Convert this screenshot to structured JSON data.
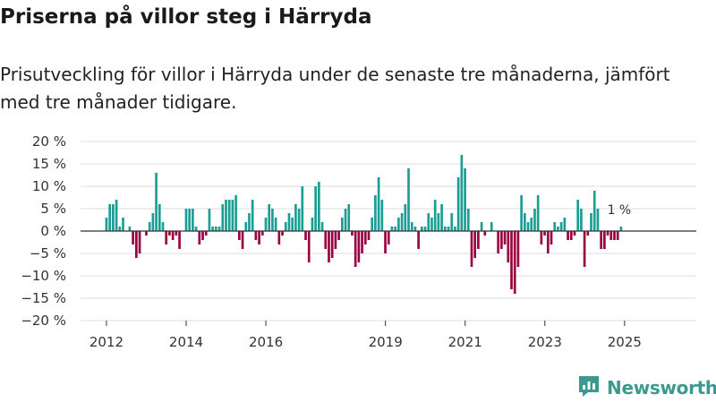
{
  "header": {
    "title": "Priserna på villor steg i Härryda",
    "subtitle": "Prisutveckling för villor i Härryda under de senaste tre månaderna, jämfört med tre månader tidigare."
  },
  "brand": {
    "name": "Newsworthy",
    "icon": "newsworthy-logo-icon"
  },
  "colors": {
    "positive": "#1a9e94",
    "negative": "#990040",
    "grid": "#dddddd",
    "brand": "#3b9a8f"
  },
  "chart_data": {
    "type": "bar",
    "title": "Priserna på villor steg i Härryda",
    "xlabel": "",
    "ylabel": "",
    "ylim": [
      -20,
      20
    ],
    "yticks": [
      20,
      15,
      10,
      5,
      0,
      -5,
      -10,
      -15,
      -20
    ],
    "ytick_labels": [
      "20 %",
      "15 %",
      "10 %",
      "5 %",
      "0 %",
      "−5 %",
      "−10 %",
      "−15 %",
      "−20 %"
    ],
    "xrange": [
      2011.35,
      2026.8
    ],
    "xticks": [
      2012,
      2014,
      2016,
      2019,
      2021,
      2023,
      2025
    ],
    "xtick_labels": [
      "2012",
      "2014",
      "2016",
      "2019",
      "2021",
      "2023",
      "2025"
    ],
    "last_value_label": "1 %",
    "start": 2012.0,
    "step": 0.0833,
    "values": [
      3,
      6,
      6,
      7,
      1,
      3,
      0,
      1,
      -3,
      -6,
      -5,
      0,
      -1,
      2,
      4,
      13,
      6,
      2,
      -3,
      -1,
      -2,
      -1,
      -4,
      0,
      5,
      5,
      5,
      1,
      -3,
      -2,
      -1,
      5,
      1,
      1,
      1,
      6,
      7,
      7,
      7,
      8,
      -2,
      -4,
      2,
      4,
      7,
      -2,
      -3,
      -1,
      3,
      6,
      5,
      3,
      -3,
      -1,
      2,
      4,
      3,
      6,
      5,
      10,
      -2,
      -7,
      3,
      10,
      11,
      2,
      -4,
      -7,
      -6,
      -4,
      -2,
      3,
      5,
      6,
      -1,
      -8,
      -7,
      -5,
      -3,
      -2,
      3,
      8,
      12,
      7,
      -5,
      -3,
      1,
      1,
      3,
      4,
      6,
      14,
      2,
      1,
      -4,
      1,
      1,
      4,
      3,
      7,
      4,
      6,
      1,
      1,
      4,
      1,
      12,
      17,
      14,
      5,
      -8,
      -6,
      -4,
      2,
      -1,
      0,
      2,
      0,
      -5,
      -4,
      -3,
      -7,
      -13,
      -14,
      -8,
      8,
      4,
      2,
      3,
      5,
      8,
      -3,
      -1,
      -5,
      -3,
      2,
      1,
      2,
      3,
      -2,
      -2,
      -1,
      7,
      5,
      -8,
      -1,
      4,
      9,
      5,
      -4,
      -4,
      -1,
      -2,
      -2,
      -2,
      1
    ]
  }
}
